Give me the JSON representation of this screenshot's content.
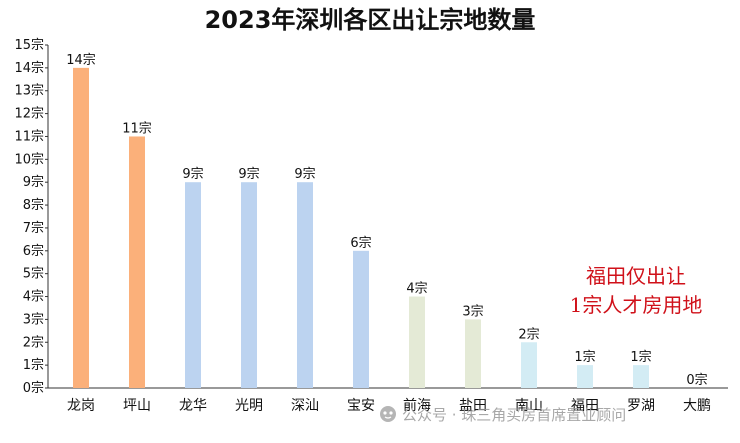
{
  "chart_data": {
    "type": "bar",
    "title": "2023年深圳各区出让宗地数量",
    "categories": [
      "龙岗",
      "坪山",
      "龙华",
      "光明",
      "深汕",
      "宝安",
      "前海",
      "盐田",
      "南山",
      "福田",
      "罗湖",
      "大鹏"
    ],
    "values": [
      14,
      11,
      9,
      9,
      9,
      6,
      4,
      3,
      2,
      1,
      1,
      0
    ],
    "data_labels": [
      "14宗",
      "11宗",
      "9宗",
      "9宗",
      "9宗",
      "6宗",
      "4宗",
      "3宗",
      "2宗",
      "1宗",
      "1宗",
      "0宗"
    ],
    "bar_colors": [
      "#fbb07a",
      "#fbb07a",
      "#bcd3f0",
      "#bcd3f0",
      "#bcd3f0",
      "#bcd3f0",
      "#e4ead6",
      "#e4ead6",
      "#d3ecf4",
      "#d3ecf4",
      "#d3ecf4",
      "#d3ecf4"
    ],
    "ylim": [
      0,
      15
    ],
    "yticks": [
      "0宗",
      "1宗",
      "2宗",
      "3宗",
      "4宗",
      "5宗",
      "6宗",
      "7宗",
      "8宗",
      "9宗",
      "10宗",
      "11宗",
      "12宗",
      "13宗",
      "14宗",
      "15宗"
    ],
    "grid": false,
    "xlabel": "",
    "ylabel": ""
  },
  "annotation": {
    "line1": "福田仅出让",
    "line2": "1宗人才房用地",
    "color": "#d0111a"
  },
  "watermark": {
    "icon": "wechat-public-account-icon",
    "text": "公众号 · 珠三角买房首席置业顾问"
  }
}
